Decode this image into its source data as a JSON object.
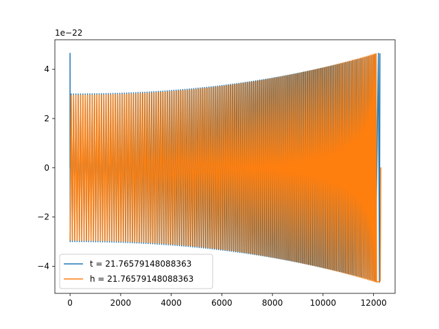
{
  "chart_data": {
    "type": "line",
    "title": "",
    "xlabel": "",
    "ylabel": "",
    "y_offset_label": "1e−22",
    "xlim": [
      -600,
      12850
    ],
    "ylim": [
      -5.1,
      5.2
    ],
    "x_ticks": [
      0,
      2000,
      4000,
      6000,
      8000,
      10000,
      12000
    ],
    "x_tick_labels": [
      "0",
      "2000",
      "4000",
      "6000",
      "8000",
      "10000",
      "12000"
    ],
    "y_ticks": [
      4,
      2,
      0,
      -2,
      -4
    ],
    "y_tick_labels": [
      "4",
      "2",
      "0",
      "−2",
      "−4"
    ],
    "grid": false,
    "legend_position": "lower-left",
    "series": [
      {
        "name": "t = 21.76579148088363",
        "color": "#1f77b4",
        "x_range": [
          0,
          12250
        ],
        "envelope_start": 3.0,
        "envelope_end": 4.65,
        "initial_spike": 4.65,
        "final_spike": -4.65
      },
      {
        "name": "h = 21.76579148088363",
        "color": "#ff7f0e",
        "x_range": [
          0,
          12300
        ],
        "envelope_start": 2.95,
        "envelope_end": 4.7,
        "end_value": 0.0
      }
    ]
  }
}
